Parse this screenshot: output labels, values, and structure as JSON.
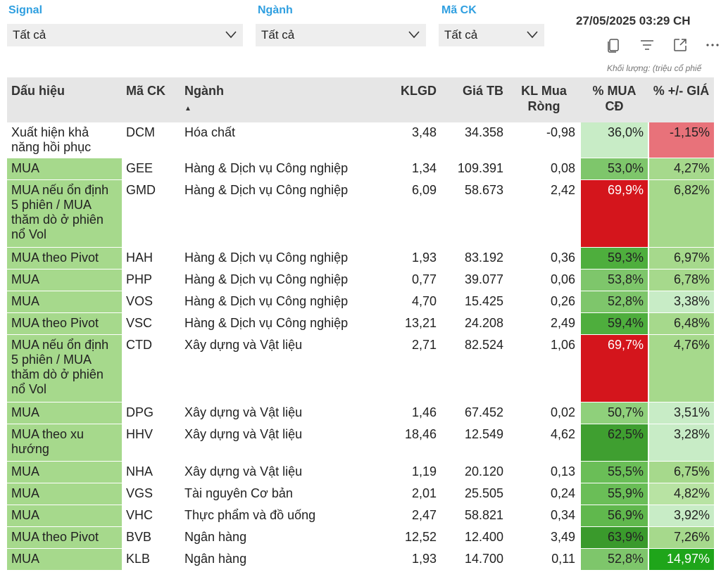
{
  "filters": [
    {
      "label": "Signal",
      "value": "Tất cả"
    },
    {
      "label": "Ngành",
      "value": "Tất cả"
    },
    {
      "label": "Mã CK",
      "value": "Tất cả"
    }
  ],
  "datetime": "27/05/2025 03:29 CH",
  "toolbar_icons": [
    "copy-icon",
    "filter-icon",
    "expand-icon",
    "more-icon"
  ],
  "unit_note": "Khối lượng: (triệu cổ phiế",
  "columns": [
    "Dấu hiệu",
    "Mã CK",
    "Ngành",
    "KLGD",
    "Giá TB",
    "KL Mua Ròng",
    "% MUA CĐ",
    "% +/- GIÁ"
  ],
  "sort_indicator": "▲",
  "colors": {
    "accent": "#2f9fe0",
    "header_bg": "#e6e6e6",
    "signal_bg": "#a6d98c",
    "red_strong": "#d4151c",
    "red_light": "#e8727a"
  },
  "rows": [
    {
      "signal": "Xuất hiện khả năng hồi phục",
      "code": "DCM",
      "sector": "Hóa chất",
      "klgd": "3,48",
      "price": "34.358",
      "net": "-0,98",
      "mua_cd": "36,0%",
      "mua_cd_bg": "#c8ecc6",
      "pct": "-1,15%",
      "pct_bg": "#e8727a",
      "signal_bg": "#ffffff",
      "h": 47
    },
    {
      "signal": "MUA",
      "code": "GEE",
      "sector": "Hàng & Dịch vụ Công nghiệp",
      "klgd": "1,34",
      "price": "109.391",
      "net": "0,08",
      "mua_cd": "53,0%",
      "mua_cd_bg": "#7ec66b",
      "pct": "4,27%",
      "pct_bg": "#a6d98c",
      "h": 31
    },
    {
      "signal": "MUA nếu ổn định 5 phiên / MUA thăm dò ở phiên nổ Vol",
      "code": "GMD",
      "sector": "Hàng & Dịch vụ Công nghiệp",
      "klgd": "6,09",
      "price": "58.673",
      "net": "2,42",
      "mua_cd": "69,9%",
      "mua_cd_bg": "#d4151c",
      "mua_cd_color": "#ffffff",
      "pct": "6,82%",
      "pct_bg": "#a6d98c",
      "h": 96
    },
    {
      "signal": "MUA theo Pivot",
      "code": "HAH",
      "sector": "Hàng & Dịch vụ Công nghiệp",
      "klgd": "1,93",
      "price": "83.192",
      "net": "0,36",
      "mua_cd": "59,3%",
      "mua_cd_bg": "#4eae3d",
      "pct": "6,97%",
      "pct_bg": "#a6d98c",
      "h": 31
    },
    {
      "signal": "MUA",
      "code": "PHP",
      "sector": "Hàng & Dịch vụ Công nghiệp",
      "klgd": "0,77",
      "price": "39.077",
      "net": "0,06",
      "mua_cd": "53,8%",
      "mua_cd_bg": "#7ec66b",
      "pct": "6,78%",
      "pct_bg": "#a6d98c",
      "h": 31
    },
    {
      "signal": "MUA",
      "code": "VOS",
      "sector": "Hàng & Dịch vụ Công nghiệp",
      "klgd": "4,70",
      "price": "15.425",
      "net": "0,26",
      "mua_cd": "52,8%",
      "mua_cd_bg": "#7ec66b",
      "pct": "3,38%",
      "pct_bg": "#c8ecc6",
      "h": 31
    },
    {
      "signal": "MUA theo Pivot",
      "code": "VSC",
      "sector": "Hàng & Dịch vụ Công nghiệp",
      "klgd": "13,21",
      "price": "24.208",
      "net": "2,49",
      "mua_cd": "59,4%",
      "mua_cd_bg": "#4eae3d",
      "pct": "6,48%",
      "pct_bg": "#a6d98c",
      "h": 31
    },
    {
      "signal": "MUA nếu ổn định 5 phiên / MUA thăm dò ở phiên nổ Vol",
      "code": "CTD",
      "sector": "Xây dựng và Vật liệu",
      "klgd": "2,71",
      "price": "82.524",
      "net": "1,06",
      "mua_cd": "69,7%",
      "mua_cd_bg": "#d4151c",
      "mua_cd_color": "#ffffff",
      "pct": "4,76%",
      "pct_bg": "#a6d98c",
      "h": 96
    },
    {
      "signal": "MUA",
      "code": "DPG",
      "sector": "Xây dựng và Vật liệu",
      "klgd": "1,46",
      "price": "67.452",
      "net": "0,02",
      "mua_cd": "50,7%",
      "mua_cd_bg": "#8fd07b",
      "pct": "3,51%",
      "pct_bg": "#c8ecc6",
      "h": 31
    },
    {
      "signal": "MUA theo xu hướng",
      "code": "HHV",
      "sector": "Xây dựng và Vật liệu",
      "klgd": "18,46",
      "price": "12.549",
      "net": "4,62",
      "mua_cd": "62,5%",
      "mua_cd_bg": "#3f9f30",
      "pct": "3,28%",
      "pct_bg": "#c8ecc6",
      "h": 53
    },
    {
      "signal": "MUA",
      "code": "NHA",
      "sector": "Xây dựng và Vật liệu",
      "klgd": "1,19",
      "price": "20.120",
      "net": "0,13",
      "mua_cd": "55,5%",
      "mua_cd_bg": "#6abe57",
      "pct": "6,75%",
      "pct_bg": "#a6d98c",
      "h": 31
    },
    {
      "signal": "MUA",
      "code": "VGS",
      "sector": "Tài nguyên Cơ bản",
      "klgd": "2,01",
      "price": "25.505",
      "net": "0,24",
      "mua_cd": "55,9%",
      "mua_cd_bg": "#6abe57",
      "pct": "4,82%",
      "pct_bg": "#b8e3a3",
      "h": 31
    },
    {
      "signal": "MUA",
      "code": "VHC",
      "sector": "Thực phẩm và đồ uống",
      "klgd": "2,47",
      "price": "58.821",
      "net": "0,34",
      "mua_cd": "56,9%",
      "mua_cd_bg": "#60b84d",
      "pct": "3,92%",
      "pct_bg": "#c8ecc6",
      "h": 31
    },
    {
      "signal": "MUA theo Pivot",
      "code": "BVB",
      "sector": "Ngân hàng",
      "klgd": "12,52",
      "price": "12.400",
      "net": "3,49",
      "mua_cd": "63,9%",
      "mua_cd_bg": "#3a9a2c",
      "pct": "7,26%",
      "pct_bg": "#a6d98c",
      "h": 31
    },
    {
      "signal": "MUA",
      "code": "KLB",
      "sector": "Ngân hàng",
      "klgd": "1,93",
      "price": "14.700",
      "net": "0,11",
      "mua_cd": "52,8%",
      "mua_cd_bg": "#7ec66b",
      "pct": "14,97%",
      "pct_bg": "#1fa51a",
      "pct_color": "#ffffff",
      "h": 31
    }
  ]
}
